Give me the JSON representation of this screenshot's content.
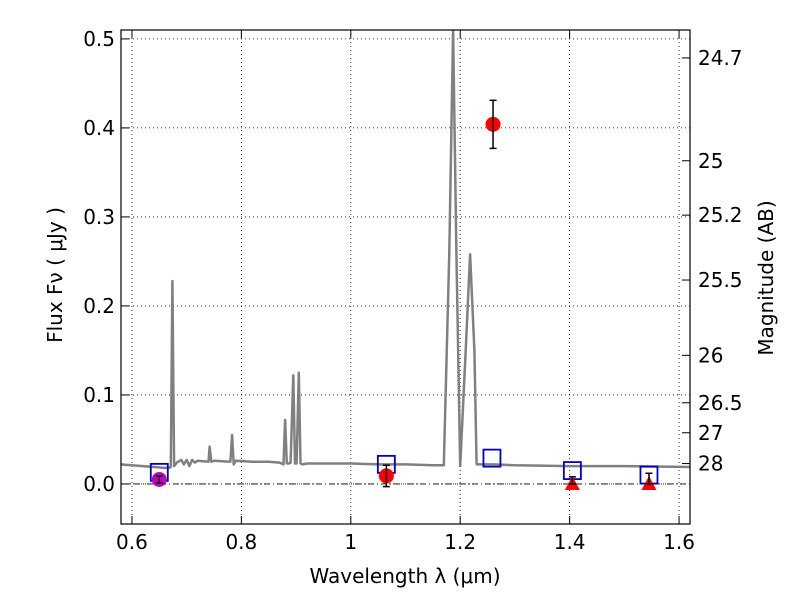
{
  "chart_data": {
    "type": "scatter",
    "xlabel": "Wavelength  λ (μm)",
    "ylabel": "Flux  Fν  ( μJy )",
    "y2label": "Magnitude (AB)",
    "xlim": [
      0.58,
      1.62
    ],
    "ylim": [
      -0.045,
      0.51
    ],
    "x_ticks": [
      0.6,
      0.8,
      1.0,
      1.2,
      1.4,
      1.6
    ],
    "x_tick_labels": [
      "0.6",
      "0.8",
      "1",
      "1.2",
      "1.4",
      "1.6"
    ],
    "y_ticks": [
      0.0,
      0.1,
      0.2,
      0.3,
      0.4,
      0.5
    ],
    "y_tick_labels": [
      "0.0",
      "0.1",
      "0.2",
      "0.3",
      "0.4",
      "0.5"
    ],
    "y2_ticks": [
      {
        "label": "24.7",
        "flux": 0.4786
      },
      {
        "label": "25",
        "flux": 0.3631
      },
      {
        "label": "25.2",
        "flux": 0.302
      },
      {
        "label": "25.5",
        "flux": 0.2291
      },
      {
        "label": "26",
        "flux": 0.1445
      },
      {
        "label": "26.5",
        "flux": 0.0912
      },
      {
        "label": "27",
        "flux": 0.0575
      },
      {
        "label": "28",
        "flux": 0.0229
      }
    ],
    "grid": true,
    "zero_line": true,
    "series": [
      {
        "kind": "line",
        "color": "#808080",
        "x": [
          0.58,
          0.6,
          0.62,
          0.64,
          0.66,
          0.668,
          0.671,
          0.674,
          0.677,
          0.682,
          0.69,
          0.695,
          0.7,
          0.705,
          0.71,
          0.715,
          0.72,
          0.74,
          0.742,
          0.745,
          0.75,
          0.78,
          0.783,
          0.786,
          0.79,
          0.82,
          0.85,
          0.87,
          0.877,
          0.88,
          0.883,
          0.887,
          0.89,
          0.895,
          0.898,
          0.901,
          0.905,
          0.908,
          0.912,
          0.92,
          0.95,
          1.0,
          1.05,
          1.1,
          1.15,
          1.17,
          1.18,
          1.187,
          1.193,
          1.2,
          1.21,
          1.218,
          1.226,
          1.23,
          1.26,
          1.3,
          1.4,
          1.5,
          1.62
        ],
        "y": [
          0.022,
          0.021,
          0.02,
          0.019,
          0.018,
          0.018,
          0.019,
          0.228,
          0.02,
          0.024,
          0.027,
          0.022,
          0.027,
          0.02,
          0.027,
          0.024,
          0.026,
          0.025,
          0.042,
          0.025,
          0.026,
          0.025,
          0.055,
          0.022,
          0.026,
          0.025,
          0.025,
          0.024,
          0.022,
          0.072,
          0.023,
          0.023,
          0.024,
          0.122,
          0.023,
          0.023,
          0.125,
          0.023,
          0.022,
          0.023,
          0.023,
          0.023,
          0.022,
          0.022,
          0.021,
          0.021,
          0.26,
          0.51,
          0.26,
          0.02,
          0.15,
          0.258,
          0.15,
          0.022,
          0.022,
          0.021,
          0.02,
          0.02,
          0.019
        ]
      },
      {
        "kind": "open_square",
        "color": "#0000cc",
        "x": [
          0.65,
          1.065,
          1.258,
          1.405,
          1.545
        ],
        "y": [
          0.013,
          0.022,
          0.029,
          0.015,
          0.01
        ]
      },
      {
        "kind": "filled_circle",
        "color": "#ff0000",
        "x": [
          1.065,
          1.26
        ],
        "y": [
          0.009,
          0.404
        ],
        "yerr": [
          0.012,
          0.027
        ]
      },
      {
        "kind": "filled_circle",
        "color": "#bf00bf",
        "x": [
          0.65
        ],
        "y": [
          0.005
        ],
        "yerr": [
          0.004
        ]
      },
      {
        "kind": "triangle",
        "color": "#ff0000",
        "x": [
          1.405,
          1.545
        ],
        "y": [
          0.0,
          0.0
        ],
        "yerr_up": [
          0.008,
          0.012
        ]
      }
    ]
  }
}
